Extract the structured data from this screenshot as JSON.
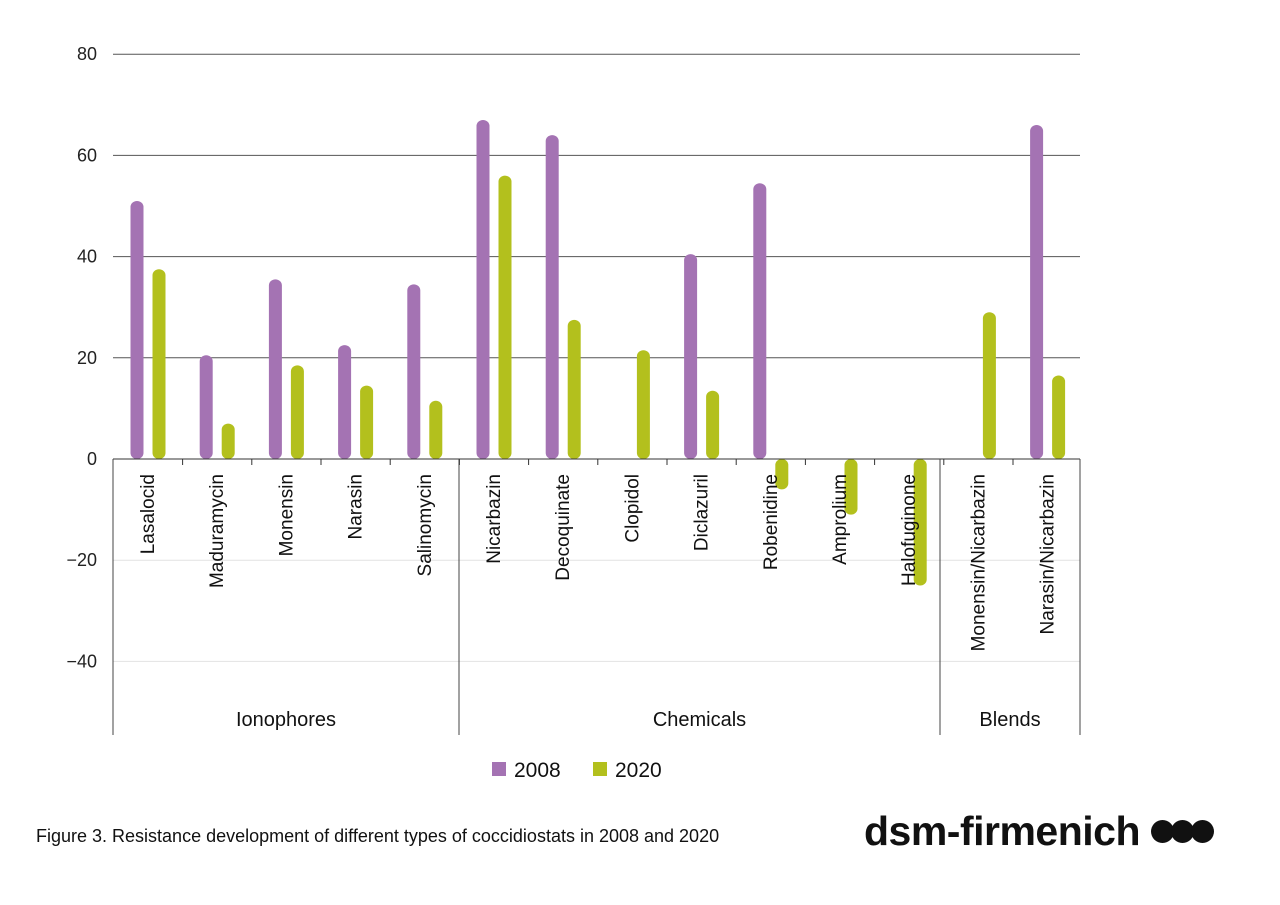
{
  "chart_data": {
    "type": "bar",
    "yticks": [
      80,
      60,
      40,
      20,
      0,
      -20,
      -40
    ],
    "ylim": [
      -55,
      80
    ],
    "categories": [
      "Lasalocid",
      "Maduramycin",
      "Monensin",
      "Narasin",
      "Salinomycin",
      "Nicarbazin",
      "Decoquinate",
      "Clopidol",
      "Diclazuril",
      "Robenidine",
      "Amprolium",
      "Halofuginone",
      "Monensin/Nicarbazin",
      "Narasin/Nicarbazin"
    ],
    "groups": [
      {
        "label": "Ionophores",
        "categories": [
          "Lasalocid",
          "Maduramycin",
          "Monensin",
          "Narasin",
          "Salinomycin"
        ]
      },
      {
        "label": "Chemicals",
        "categories": [
          "Nicarbazin",
          "Decoquinate",
          "Clopidol",
          "Diclazuril",
          "Robenidine",
          "Amprolium",
          "Halofuginone"
        ]
      },
      {
        "label": "Blends",
        "categories": [
          "Monensin/Nicarbazin",
          "Narasin/Nicarbazin"
        ]
      }
    ],
    "series": [
      {
        "name": "2008",
        "color": "#a473b3",
        "values": [
          51,
          20.5,
          35.5,
          22.5,
          34.5,
          67,
          64,
          null,
          40.5,
          54.5,
          null,
          null,
          null,
          66
        ]
      },
      {
        "name": "2020",
        "color": "#b3c01d",
        "values": [
          37.5,
          7,
          18.5,
          14.5,
          11.5,
          56,
          27.5,
          21.5,
          13.5,
          -6,
          -11,
          -25,
          29,
          16.5
        ]
      }
    ],
    "grid": true,
    "legend_position": "bottom-center"
  },
  "caption": "Figure 3. Resistance development of different types of coccidiostats in 2008 and 2020",
  "brand": {
    "name": "dsm-firmenich"
  }
}
